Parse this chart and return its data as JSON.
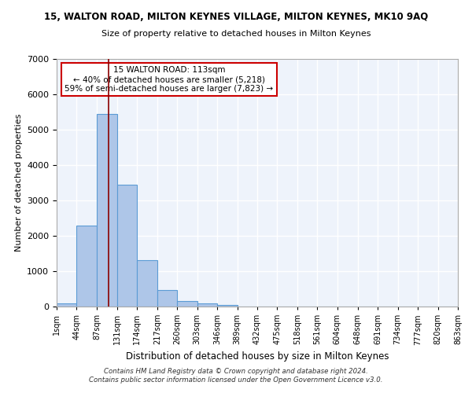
{
  "title1": "15, WALTON ROAD, MILTON KEYNES VILLAGE, MILTON KEYNES, MK10 9AQ",
  "title2": "Size of property relative to detached houses in Milton Keynes",
  "xlabel": "Distribution of detached houses by size in Milton Keynes",
  "ylabel": "Number of detached properties",
  "footer1": "Contains HM Land Registry data © Crown copyright and database right 2024.",
  "footer2": "Contains public sector information licensed under the Open Government Licence v3.0.",
  "bar_edges": [
    1,
    44,
    87,
    131,
    174,
    217,
    260,
    303,
    346,
    389,
    432,
    475,
    518,
    561,
    604,
    648,
    691,
    734,
    777,
    820,
    863
  ],
  "bar_values": [
    80,
    2300,
    5450,
    3450,
    1320,
    470,
    155,
    80,
    45,
    0,
    0,
    0,
    0,
    0,
    0,
    0,
    0,
    0,
    0,
    0
  ],
  "bar_color": "#aec6e8",
  "bar_edgecolor": "#5b9bd5",
  "property_size": 113,
  "property_label": "15 WALTON ROAD: 113sqm",
  "annotation_line1": "← 40% of detached houses are smaller (5,218)",
  "annotation_line2": "59% of semi-detached houses are larger (7,823) →",
  "vline_color": "#8b0000",
  "annotation_box_edgecolor": "#cc0000",
  "annotation_box_facecolor": "#ffffff",
  "ylim": [
    0,
    7000
  ],
  "yticks": [
    0,
    1000,
    2000,
    3000,
    4000,
    5000,
    6000,
    7000
  ],
  "bg_color": "#eef3fb",
  "grid_color": "#ffffff",
  "tick_labels": [
    "1sqm",
    "44sqm",
    "87sqm",
    "131sqm",
    "174sqm",
    "217sqm",
    "260sqm",
    "303sqm",
    "346sqm",
    "389sqm",
    "432sqm",
    "475sqm",
    "518sqm",
    "561sqm",
    "604sqm",
    "648sqm",
    "691sqm",
    "734sqm",
    "777sqm",
    "820sqm",
    "863sqm"
  ]
}
